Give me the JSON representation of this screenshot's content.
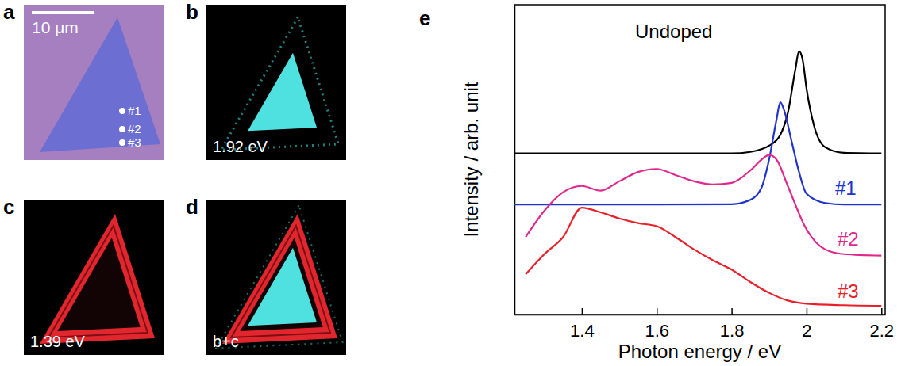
{
  "panels": [
    {
      "letter": "a",
      "scale_bar": "10 μm",
      "points": [
        "#1",
        "#2",
        "#3"
      ]
    },
    {
      "letter": "b",
      "label": "1.92 eV"
    },
    {
      "letter": "c",
      "label": "1.39 eV"
    },
    {
      "letter": "d",
      "label": "b+c"
    },
    {
      "letter": "e"
    }
  ],
  "chart_data": {
    "type": "line",
    "x_label": "Photon energy / eV",
    "y_label": "Intensity / arb. unit",
    "xlim": [
      1.22,
      2.21
    ],
    "ylim": [
      0,
      10
    ],
    "xticks": [
      1.4,
      1.6,
      1.8,
      2,
      2.2
    ],
    "yticks": [],
    "tick_labels": "x",
    "grid": false,
    "series": [
      {
        "name": "Undoped",
        "color": "#000000",
        "x": [
          1.22,
          1.5,
          1.8,
          1.85,
          1.9,
          1.93,
          1.95,
          1.97,
          1.98,
          1.99,
          2.0,
          2.02,
          2.05,
          2.1,
          2.2
        ],
        "values": [
          5.2,
          5.2,
          5.2,
          5.25,
          5.45,
          5.8,
          6.5,
          7.9,
          8.5,
          8.2,
          7.3,
          6.1,
          5.4,
          5.22,
          5.2
        ]
      },
      {
        "name": "#1",
        "color": "#2233cc",
        "x": [
          1.22,
          1.5,
          1.8,
          1.85,
          1.88,
          1.9,
          1.92,
          1.93,
          1.94,
          1.96,
          1.98,
          2.0,
          2.05,
          2.1,
          2.2
        ],
        "values": [
          3.55,
          3.55,
          3.56,
          3.7,
          4.1,
          5.0,
          6.3,
          6.85,
          6.6,
          5.6,
          4.6,
          3.9,
          3.6,
          3.55,
          3.55
        ]
      },
      {
        "name": "#2",
        "color": "#e0288c",
        "x": [
          1.25,
          1.3,
          1.35,
          1.4,
          1.45,
          1.5,
          1.55,
          1.6,
          1.65,
          1.7,
          1.75,
          1.8,
          1.85,
          1.88,
          1.9,
          1.92,
          1.95,
          2.0,
          2.05,
          2.1,
          2.2
        ],
        "values": [
          2.5,
          3.35,
          3.95,
          4.15,
          4.0,
          4.3,
          4.6,
          4.7,
          4.5,
          4.3,
          4.2,
          4.25,
          4.65,
          5.0,
          5.15,
          5.0,
          4.15,
          2.75,
          2.1,
          1.95,
          1.9
        ]
      },
      {
        "name": "#3",
        "color": "#e8202a",
        "x": [
          1.25,
          1.3,
          1.35,
          1.4,
          1.45,
          1.5,
          1.55,
          1.6,
          1.65,
          1.7,
          1.75,
          1.8,
          1.85,
          1.9,
          1.95,
          2.0,
          2.1,
          2.2
        ],
        "values": [
          1.3,
          1.95,
          2.5,
          3.45,
          3.3,
          3.1,
          2.95,
          2.85,
          2.5,
          2.1,
          1.75,
          1.45,
          1.05,
          0.7,
          0.45,
          0.35,
          0.3,
          0.28
        ]
      }
    ]
  }
}
